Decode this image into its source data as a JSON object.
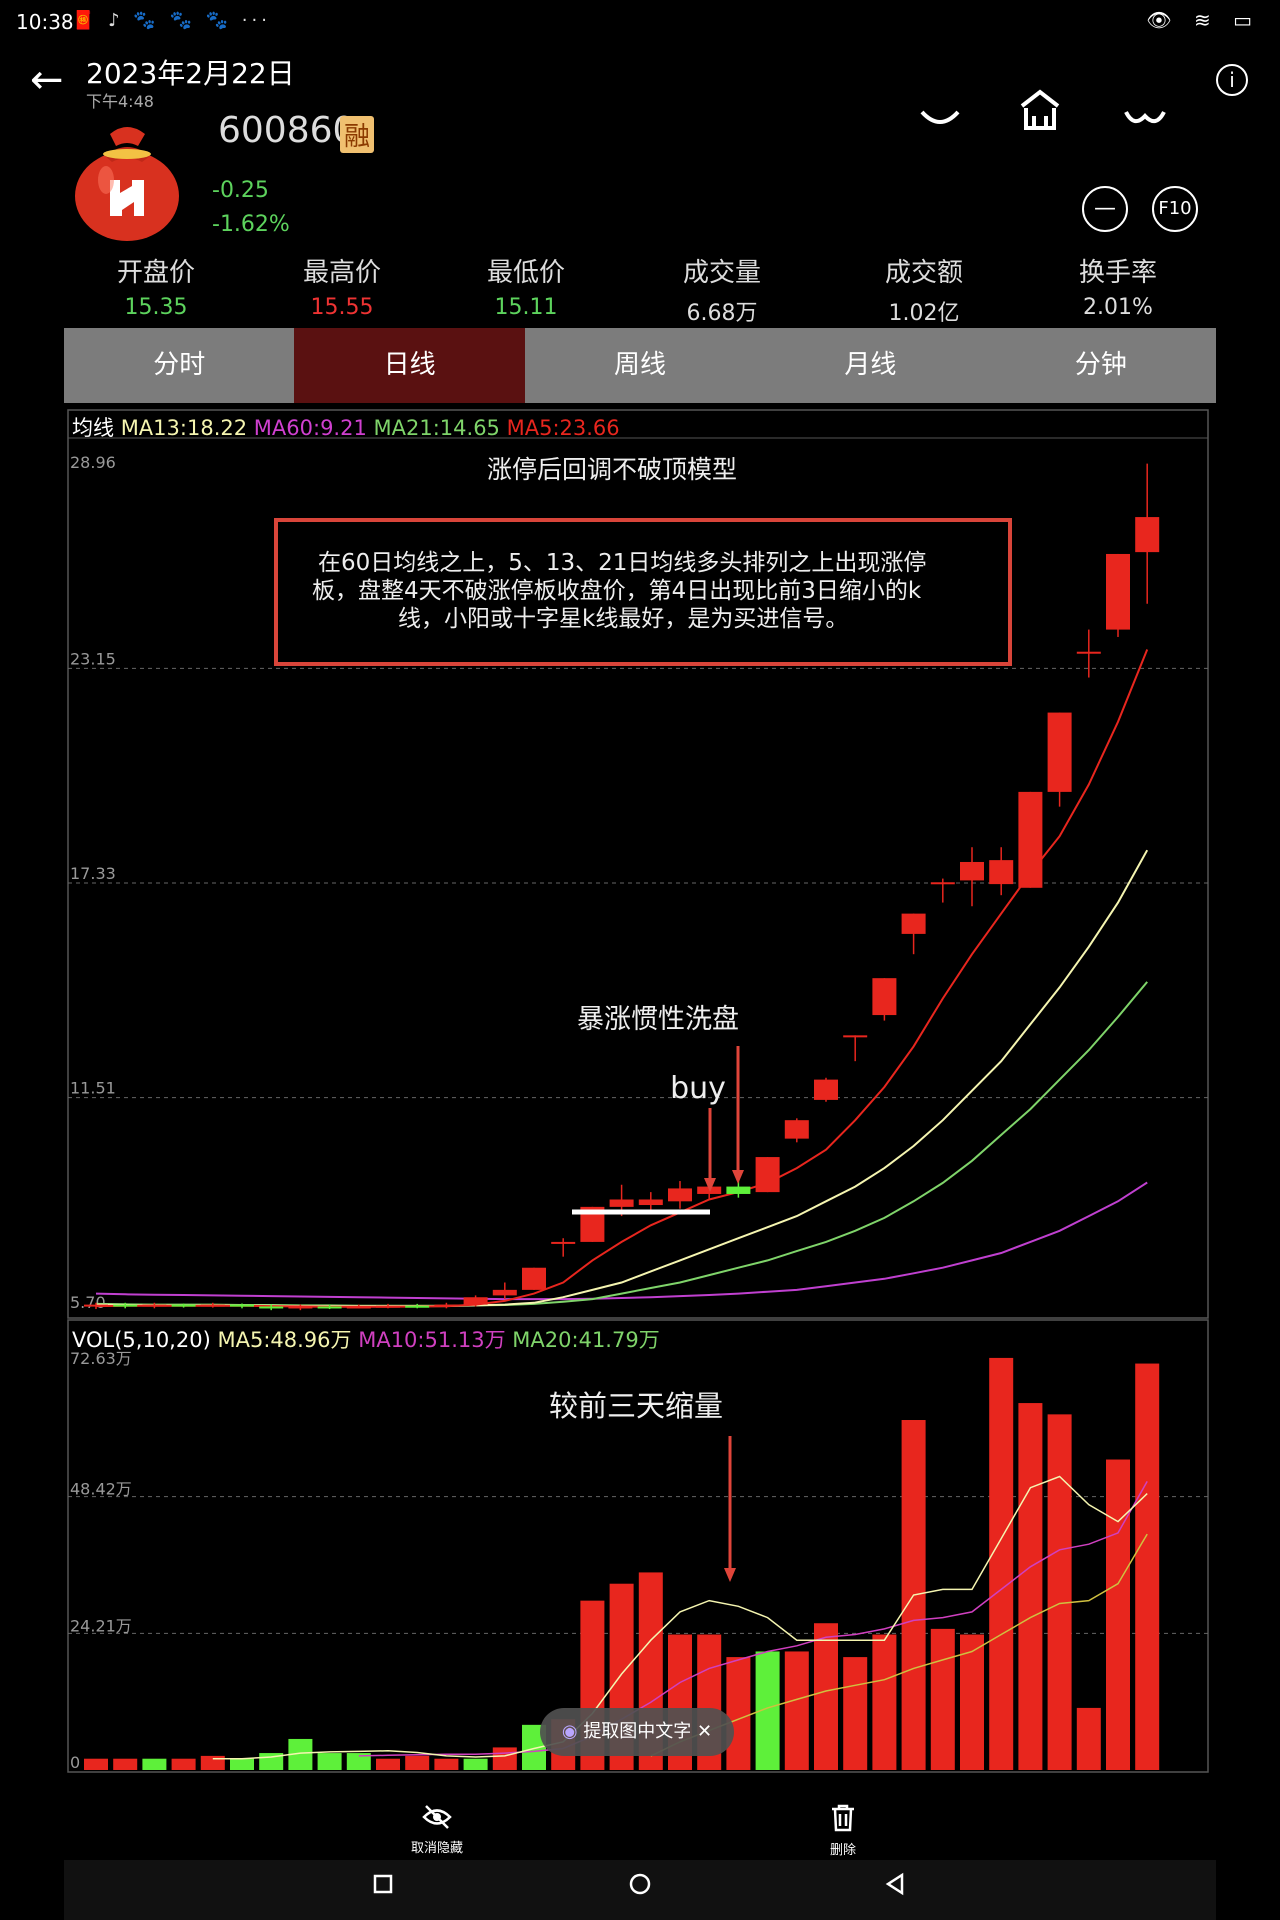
{
  "status": {
    "time": "10:38",
    "icons": "🧧 ♪ 🐾 🐾 🐾 ···",
    "right_icons": "👁 ≋ ▭"
  },
  "header": {
    "date": "2023年2月22日",
    "time": "下午4:48",
    "back_icon": "back-arrow-icon",
    "info_icon": "info-icon"
  },
  "stock": {
    "code": "600860",
    "badge": "融",
    "change": "-0.25",
    "change_pct": "-1.62%",
    "f10": "F10",
    "minus": "—"
  },
  "stats": [
    {
      "label": "开盘价",
      "value": "15.35",
      "color": "#5dd35d"
    },
    {
      "label": "最高价",
      "value": "15.55",
      "color": "#e33"
    },
    {
      "label": "最低价",
      "value": "15.11",
      "color": "#5dd35d"
    },
    {
      "label": "成交量",
      "value": "6.68万",
      "color": "#ddd"
    },
    {
      "label": "成交额",
      "value": "1.02亿",
      "color": "#ddd"
    },
    {
      "label": "换手率",
      "value": "2.01%",
      "color": "#ddd"
    }
  ],
  "tabs": [
    {
      "label": "分时",
      "active": false
    },
    {
      "label": "日线",
      "active": true
    },
    {
      "label": "周线",
      "active": false
    },
    {
      "label": "月线",
      "active": false
    },
    {
      "label": "分钟",
      "active": false
    }
  ],
  "ma_legend": {
    "prefix": "均线",
    "ma13": "MA13:18.22",
    "ma60": "MA60:9.21",
    "ma21": "MA21:14.65",
    "ma5": "MA5:23.66"
  },
  "vol_legend": {
    "prefix": "VOL(5,10,20)",
    "ma5": "MA5:48.96万",
    "ma10": "MA10:51.13万",
    "ma20": "MA20:41.79万"
  },
  "annotations": {
    "title": "涨停后回调不破顶模型",
    "box_text": [
      "在60日均线之上，5、13、21日均线多头排列之上出现涨停",
      "板，盘整4天不破涨停板收盘价，第4日出现比前3日缩小的k",
      "线，小阳或十字星k线最好，是为买进信号。"
    ],
    "wash": "暴涨惯性洗盘",
    "buy": "buy",
    "shrink": "较前三天缩量"
  },
  "toast": {
    "text": "提取图中文字",
    "close": "✕"
  },
  "actions": [
    {
      "label": "取消隐藏",
      "icon": "eye-off-icon"
    },
    {
      "label": "删除",
      "icon": "trash-icon"
    }
  ],
  "colors": {
    "up": "#e8261e",
    "down": "#5ef03a",
    "ma5": "#e8261e",
    "ma13": "#f5f5b0",
    "ma21": "#7fd46a",
    "ma60": "#c040d0",
    "vol_ma5": "#f5f5b0",
    "vol_ma10": "#d040c0",
    "vol_ma20": "#d0c040"
  },
  "chart_data": [
    {
      "type": "candlestick",
      "title": "",
      "y_ticks": [
        "28.96",
        "23.15",
        "17.33",
        "11.51",
        "5.70"
      ],
      "ylim": [
        5.7,
        28.96
      ],
      "candles": [
        {
          "o": 5.85,
          "c": 5.9,
          "h": 5.95,
          "l": 5.78
        },
        {
          "o": 5.9,
          "c": 5.85,
          "h": 5.95,
          "l": 5.8
        },
        {
          "o": 5.85,
          "c": 5.9,
          "h": 5.95,
          "l": 5.8
        },
        {
          "o": 5.9,
          "c": 5.87,
          "h": 5.93,
          "l": 5.82
        },
        {
          "o": 5.87,
          "c": 5.9,
          "h": 5.95,
          "l": 5.82
        },
        {
          "o": 5.9,
          "c": 5.85,
          "h": 5.93,
          "l": 5.8
        },
        {
          "o": 5.85,
          "c": 5.8,
          "h": 5.9,
          "l": 5.75
        },
        {
          "o": 5.8,
          "c": 5.85,
          "h": 5.9,
          "l": 5.75
        },
        {
          "o": 5.85,
          "c": 5.83,
          "h": 5.9,
          "l": 5.78
        },
        {
          "o": 5.83,
          "c": 5.85,
          "h": 5.9,
          "l": 5.8
        },
        {
          "o": 5.85,
          "c": 5.87,
          "h": 5.92,
          "l": 5.8
        },
        {
          "o": 5.87,
          "c": 5.85,
          "h": 5.92,
          "l": 5.8
        },
        {
          "o": 5.85,
          "c": 5.9,
          "h": 5.95,
          "l": 5.8
        },
        {
          "o": 5.9,
          "c": 6.1,
          "h": 6.15,
          "l": 5.85
        },
        {
          "o": 6.15,
          "c": 6.3,
          "h": 6.5,
          "l": 6.05
        },
        {
          "o": 6.3,
          "c": 6.9,
          "h": 6.9,
          "l": 6.3
        },
        {
          "o": 7.6,
          "c": 7.6,
          "h": 7.7,
          "l": 7.2
        },
        {
          "o": 7.6,
          "c": 8.55,
          "h": 8.55,
          "l": 7.6
        },
        {
          "o": 8.55,
          "c": 8.75,
          "h": 9.15,
          "l": 8.3
        },
        {
          "o": 8.6,
          "c": 8.75,
          "h": 8.95,
          "l": 8.4
        },
        {
          "o": 8.7,
          "c": 9.05,
          "h": 9.25,
          "l": 8.5
        },
        {
          "o": 8.9,
          "c": 9.1,
          "h": 9.25,
          "l": 8.75
        },
        {
          "o": 9.1,
          "c": 8.9,
          "h": 9.3,
          "l": 8.8
        },
        {
          "o": 8.95,
          "c": 9.9,
          "h": 9.9,
          "l": 8.95
        },
        {
          "o": 10.4,
          "c": 10.9,
          "h": 10.95,
          "l": 10.3
        },
        {
          "o": 11.45,
          "c": 12.0,
          "h": 12.05,
          "l": 11.4
        },
        {
          "o": 13.2,
          "c": 13.2,
          "h": 13.2,
          "l": 12.5
        },
        {
          "o": 13.75,
          "c": 14.75,
          "h": 14.75,
          "l": 13.6
        },
        {
          "o": 15.95,
          "c": 16.5,
          "h": 16.5,
          "l": 15.4
        },
        {
          "o": 17.3,
          "c": 17.35,
          "h": 17.45,
          "l": 16.8
        },
        {
          "o": 17.4,
          "c": 17.9,
          "h": 18.3,
          "l": 16.7
        },
        {
          "o": 17.3,
          "c": 17.95,
          "h": 18.3,
          "l": 17.0
        },
        {
          "o": 17.2,
          "c": 19.8,
          "h": 19.8,
          "l": 17.2
        },
        {
          "o": 19.8,
          "c": 21.95,
          "h": 21.95,
          "l": 19.4
        },
        {
          "o": 23.55,
          "c": 23.6,
          "h": 24.2,
          "l": 22.9
        },
        {
          "o": 24.2,
          "c": 26.25,
          "h": 26.25,
          "l": 24.0
        },
        {
          "o": 26.3,
          "c": 27.25,
          "h": 28.7,
          "l": 24.9
        }
      ],
      "ma5": [
        5.86,
        5.87,
        5.87,
        5.87,
        5.87,
        5.87,
        5.86,
        5.85,
        5.84,
        5.84,
        5.84,
        5.85,
        5.86,
        5.9,
        6.0,
        6.2,
        6.5,
        7.1,
        7.6,
        8.05,
        8.4,
        8.75,
        8.95,
        9.2,
        9.6,
        10.1,
        10.9,
        11.8,
        12.9,
        14.2,
        15.4,
        16.5,
        17.6,
        18.6,
        20.0,
        21.7,
        23.66
      ],
      "ma13": [
        5.9,
        5.89,
        5.88,
        5.88,
        5.88,
        5.88,
        5.87,
        5.86,
        5.86,
        5.86,
        5.86,
        5.86,
        5.86,
        5.88,
        5.9,
        5.95,
        6.1,
        6.3,
        6.5,
        6.8,
        7.1,
        7.4,
        7.7,
        8.0,
        8.3,
        8.7,
        9.1,
        9.6,
        10.2,
        10.9,
        11.7,
        12.5,
        13.5,
        14.5,
        15.6,
        16.8,
        18.22
      ],
      "ma21": [
        5.92,
        5.91,
        5.9,
        5.9,
        5.9,
        5.89,
        5.89,
        5.88,
        5.88,
        5.87,
        5.87,
        5.87,
        5.87,
        5.88,
        5.89,
        5.92,
        5.98,
        6.05,
        6.2,
        6.35,
        6.5,
        6.7,
        6.9,
        7.1,
        7.35,
        7.6,
        7.9,
        8.25,
        8.7,
        9.2,
        9.8,
        10.5,
        11.2,
        12.0,
        12.8,
        13.7,
        14.65
      ],
      "ma60": [
        6.2,
        6.18,
        6.17,
        6.16,
        6.15,
        6.14,
        6.13,
        6.12,
        6.11,
        6.1,
        6.09,
        6.08,
        6.07,
        6.06,
        6.05,
        6.05,
        6.05,
        6.06,
        6.08,
        6.1,
        6.13,
        6.16,
        6.2,
        6.25,
        6.3,
        6.4,
        6.5,
        6.6,
        6.75,
        6.9,
        7.1,
        7.3,
        7.6,
        7.9,
        8.3,
        8.7,
        9.21
      ]
    },
    {
      "type": "bar",
      "title": "",
      "y_ticks": [
        "72.63万",
        "48.42万",
        "24.21万",
        "0"
      ],
      "ylim": [
        0,
        72.63
      ],
      "values": [
        2,
        2,
        2,
        2,
        2.5,
        2,
        3,
        5.5,
        3,
        3,
        2,
        2.5,
        2,
        2,
        4,
        8,
        9,
        30,
        33,
        35,
        24,
        24,
        20,
        21,
        21,
        26,
        20,
        24,
        62,
        25,
        24,
        73,
        65,
        63,
        11,
        55,
        72
      ],
      "direction": [
        "up",
        "up",
        "down",
        "up",
        "up",
        "down",
        "down",
        "down",
        "down",
        "down",
        "up",
        "up",
        "up",
        "down",
        "up",
        "down",
        "up",
        "up",
        "up",
        "up",
        "up",
        "up",
        "up",
        "down",
        "up",
        "up",
        "up",
        "up",
        "up",
        "up",
        "up",
        "up",
        "up",
        "up",
        "up",
        "up",
        "up"
      ],
      "ma5": [
        null,
        null,
        null,
        null,
        2,
        2,
        2.3,
        3,
        3.2,
        3.3,
        3.4,
        3.1,
        2.5,
        2.3,
        2.5,
        3.8,
        5,
        10,
        17,
        23,
        28,
        30,
        29,
        27,
        23,
        23,
        23,
        23,
        31,
        32,
        32,
        41,
        50,
        52,
        47,
        44,
        48.96
      ],
      "ma10": [
        null,
        null,
        null,
        null,
        null,
        null,
        null,
        null,
        null,
        2.5,
        2.6,
        2.7,
        2.8,
        2.8,
        3,
        3.3,
        3.8,
        6,
        9,
        12,
        15.5,
        18,
        19.5,
        21,
        22,
        23.5,
        24,
        25,
        26.5,
        27,
        28,
        32,
        36,
        39,
        40,
        42,
        51.13
      ],
      "ma20": [
        null,
        null,
        null,
        null,
        null,
        null,
        null,
        null,
        null,
        null,
        null,
        null,
        null,
        null,
        null,
        null,
        null,
        null,
        null,
        2.5,
        5,
        7,
        9,
        11,
        12.5,
        14,
        15,
        16,
        18,
        19.5,
        21,
        24,
        27,
        29.5,
        30,
        33,
        41.79
      ]
    }
  ]
}
